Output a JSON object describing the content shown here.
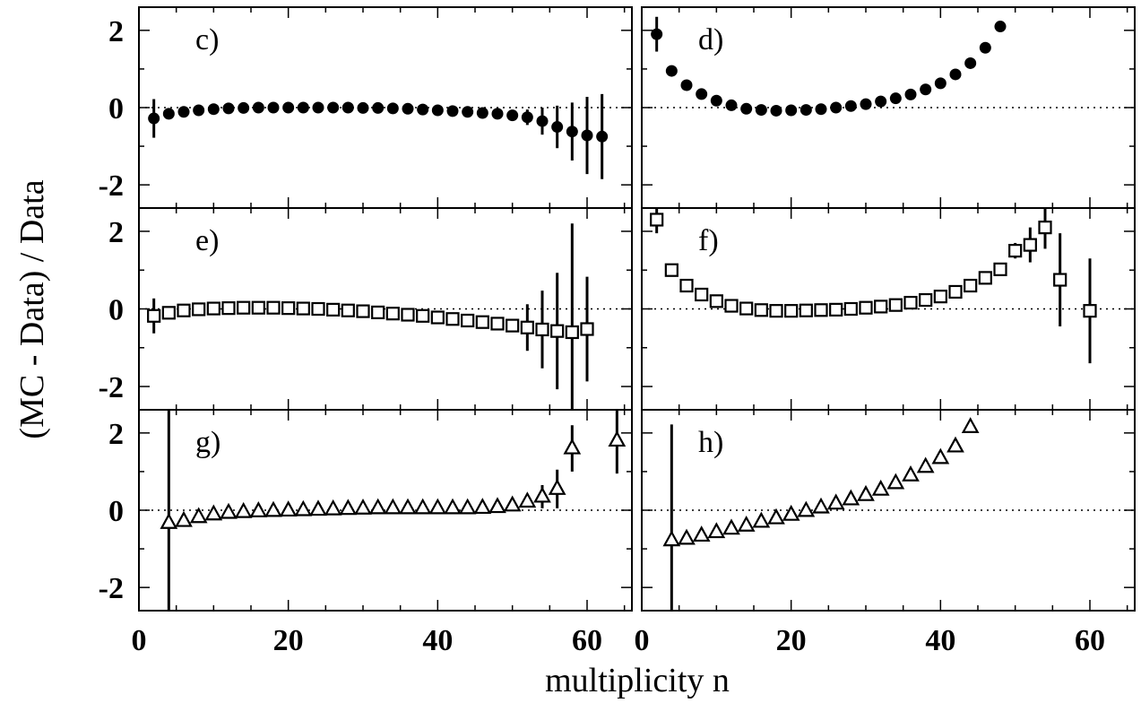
{
  "chart_data": {
    "type": "scatter",
    "xlabel": "multiplicity n",
    "ylabel": "(MC - Data) / Data",
    "xlim": [
      0,
      66
    ],
    "ylim": [
      -2.6,
      2.6
    ],
    "x_ticks": [
      0,
      20,
      40,
      60
    ],
    "x_tick_labels": [
      "0",
      "20",
      "40",
      "60"
    ],
    "y_ticks": [
      -2,
      0,
      2
    ],
    "y_tick_labels": [
      "-2",
      "0",
      "2"
    ],
    "reference_line": 0,
    "panels": [
      {
        "label": "c)",
        "marker": "filled-circle",
        "x": [
          2,
          4,
          6,
          8,
          10,
          12,
          14,
          16,
          18,
          20,
          22,
          24,
          26,
          28,
          30,
          32,
          34,
          36,
          38,
          40,
          42,
          44,
          46,
          48,
          50,
          52,
          54,
          56,
          58,
          60,
          62
        ],
        "y": [
          -0.28,
          -0.16,
          -0.11,
          -0.07,
          -0.04,
          -0.02,
          -0.01,
          0.0,
          0.0,
          0.0,
          0.0,
          0.0,
          0.0,
          0.0,
          -0.01,
          -0.01,
          -0.02,
          -0.03,
          -0.05,
          -0.07,
          -0.09,
          -0.11,
          -0.14,
          -0.16,
          -0.2,
          -0.25,
          -0.35,
          -0.5,
          -0.62,
          -0.72,
          -0.75
        ],
        "err": [
          0.5,
          0.12,
          0.06,
          0.04,
          0.03,
          0.02,
          0.02,
          0.02,
          0.02,
          0.02,
          0.02,
          0.02,
          0.02,
          0.02,
          0.02,
          0.02,
          0.02,
          0.02,
          0.02,
          0.03,
          0.03,
          0.04,
          0.05,
          0.07,
          0.12,
          0.2,
          0.35,
          0.55,
          0.75,
          1.0,
          1.1
        ]
      },
      {
        "label": "d)",
        "marker": "filled-circle",
        "x": [
          2,
          4,
          6,
          8,
          10,
          12,
          14,
          16,
          18,
          20,
          22,
          24,
          26,
          28,
          30,
          32,
          34,
          36,
          38,
          40,
          42,
          44,
          46,
          48
        ],
        "y": [
          1.9,
          0.95,
          0.58,
          0.35,
          0.18,
          0.06,
          -0.03,
          -0.06,
          -0.08,
          -0.07,
          -0.06,
          -0.04,
          0.0,
          0.04,
          0.09,
          0.16,
          0.24,
          0.34,
          0.47,
          0.63,
          0.86,
          1.15,
          1.55,
          2.1
        ],
        "err": [
          0.45,
          0.12,
          0.05,
          0.03,
          0.02,
          0.02,
          0.02,
          0.02,
          0.02,
          0.02,
          0.02,
          0.02,
          0.02,
          0.02,
          0.02,
          0.02,
          0.02,
          0.02,
          0.02,
          0.02,
          0.03,
          0.03,
          0.04,
          0.05
        ]
      },
      {
        "label": "e)",
        "marker": "open-square",
        "x": [
          2,
          4,
          6,
          8,
          10,
          12,
          14,
          16,
          18,
          20,
          22,
          24,
          26,
          28,
          30,
          32,
          34,
          36,
          38,
          40,
          42,
          44,
          46,
          48,
          50,
          52,
          54,
          56,
          58,
          60
        ],
        "y": [
          -0.18,
          -0.1,
          -0.04,
          -0.01,
          0.01,
          0.02,
          0.03,
          0.03,
          0.03,
          0.02,
          0.01,
          0.0,
          -0.02,
          -0.04,
          -0.06,
          -0.09,
          -0.12,
          -0.15,
          -0.18,
          -0.22,
          -0.26,
          -0.3,
          -0.34,
          -0.38,
          -0.43,
          -0.48,
          -0.53,
          -0.57,
          -0.6,
          -0.52
        ],
        "err": [
          0.45,
          0.12,
          0.06,
          0.04,
          0.03,
          0.02,
          0.02,
          0.02,
          0.02,
          0.02,
          0.02,
          0.02,
          0.02,
          0.02,
          0.02,
          0.02,
          0.02,
          0.02,
          0.02,
          0.03,
          0.03,
          0.04,
          0.05,
          0.07,
          0.15,
          0.6,
          1.0,
          1.5,
          2.8,
          1.35
        ]
      },
      {
        "label": "f)",
        "marker": "open-square",
        "x": [
          2,
          4,
          6,
          8,
          10,
          12,
          14,
          16,
          18,
          20,
          22,
          24,
          26,
          28,
          30,
          32,
          34,
          36,
          38,
          40,
          42,
          44,
          46,
          48,
          50,
          52,
          54,
          56,
          60
        ],
        "y": [
          2.3,
          1.0,
          0.6,
          0.37,
          0.2,
          0.08,
          0.01,
          -0.03,
          -0.05,
          -0.05,
          -0.04,
          -0.03,
          -0.02,
          0.0,
          0.03,
          0.06,
          0.1,
          0.16,
          0.23,
          0.32,
          0.44,
          0.6,
          0.8,
          1.02,
          1.5,
          1.65,
          2.1,
          0.75,
          -0.05
        ],
        "err": [
          0.35,
          0.08,
          0.05,
          0.04,
          0.03,
          0.02,
          0.02,
          0.02,
          0.02,
          0.02,
          0.02,
          0.02,
          0.02,
          0.02,
          0.02,
          0.02,
          0.02,
          0.02,
          0.02,
          0.03,
          0.04,
          0.05,
          0.07,
          0.1,
          0.2,
          0.45,
          0.55,
          1.2,
          1.35
        ]
      },
      {
        "label": "g)",
        "marker": "open-triangle",
        "x": [
          4,
          6,
          8,
          10,
          12,
          14,
          16,
          18,
          20,
          22,
          24,
          26,
          28,
          30,
          32,
          34,
          36,
          38,
          40,
          42,
          44,
          46,
          48,
          50,
          52,
          54,
          56,
          58,
          64
        ],
        "y": [
          -0.33,
          -0.28,
          -0.18,
          -0.11,
          -0.07,
          -0.05,
          -0.03,
          -0.02,
          -0.01,
          0.0,
          0.01,
          0.02,
          0.03,
          0.04,
          0.05,
          0.05,
          0.05,
          0.05,
          0.05,
          0.05,
          0.05,
          0.06,
          0.08,
          0.12,
          0.22,
          0.35,
          0.55,
          1.6,
          1.8
        ],
        "err": [
          3.0,
          0.15,
          0.08,
          0.05,
          0.04,
          0.03,
          0.02,
          0.02,
          0.02,
          0.02,
          0.02,
          0.02,
          0.02,
          0.02,
          0.02,
          0.02,
          0.02,
          0.02,
          0.02,
          0.02,
          0.03,
          0.04,
          0.05,
          0.07,
          0.15,
          0.3,
          0.5,
          0.6,
          0.85
        ]
      },
      {
        "label": "h)",
        "marker": "open-triangle",
        "x": [
          4,
          6,
          8,
          10,
          12,
          14,
          16,
          18,
          20,
          22,
          24,
          26,
          28,
          30,
          32,
          34,
          36,
          38,
          40,
          42,
          44
        ],
        "y": [
          -0.78,
          -0.74,
          -0.66,
          -0.57,
          -0.48,
          -0.4,
          -0.3,
          -0.21,
          -0.12,
          -0.02,
          0.07,
          0.17,
          0.28,
          0.39,
          0.53,
          0.7,
          0.9,
          1.12,
          1.35,
          1.65,
          2.15
        ],
        "err": [
          3.0,
          0.12,
          0.06,
          0.04,
          0.03,
          0.03,
          0.02,
          0.02,
          0.02,
          0.02,
          0.02,
          0.02,
          0.02,
          0.02,
          0.02,
          0.03,
          0.03,
          0.04,
          0.05,
          0.06,
          0.08
        ]
      }
    ]
  }
}
